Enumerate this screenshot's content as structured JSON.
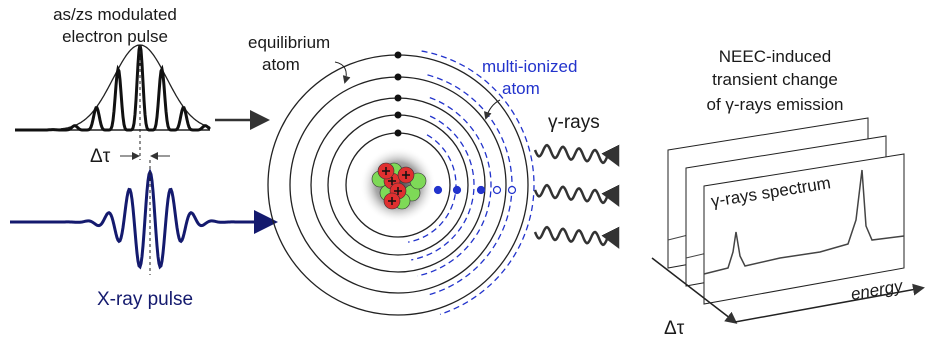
{
  "electron_pulse_label": [
    "as/zs modulated",
    "electron pulse"
  ],
  "delay_label": "Δτ",
  "xray_pulse_label": "X-ray pulse",
  "equilibrium_atom_label": [
    "equilibrium",
    "atom"
  ],
  "multi_ionized_atom_label": [
    "multi-ionized",
    "atom"
  ],
  "gamma_rays_label": "γ-rays",
  "neec_label": [
    "NEEC-induced",
    "transient change",
    "of γ-rays emission"
  ],
  "spectrum_label": "γ-rays spectrum",
  "energy_axis_label": "energy",
  "delay_axis_label": "Δτ"
}
